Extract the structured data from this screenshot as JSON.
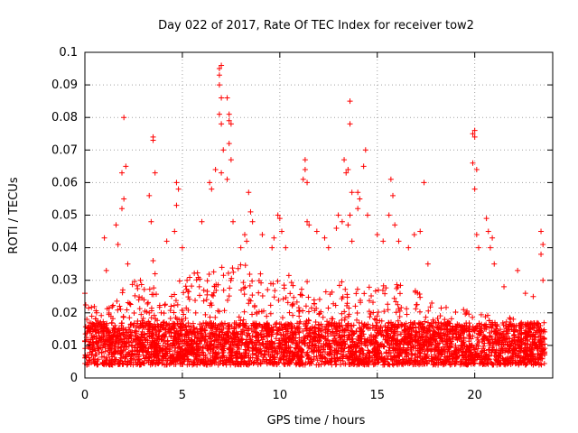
{
  "chart_data": {
    "type": "scatter",
    "title": "Day 022 of 2017, Rate Of TEC Index for receiver tow2",
    "xlabel": "GPS time / hours",
    "ylabel": "ROTI / TECUs",
    "xlim": [
      0,
      24
    ],
    "ylim": [
      0,
      0.1
    ],
    "grid": true,
    "marker": "+",
    "color": "#ff0000",
    "x_ticks": [
      "0",
      "5",
      "10",
      "15",
      "20"
    ],
    "y_ticks": [
      "0",
      "0.01",
      "0.02",
      "0.03",
      "0.04",
      "0.05",
      "0.06",
      "0.07",
      "0.08",
      "0.09",
      "0.1"
    ],
    "x_tick_values": [
      0,
      5,
      10,
      15,
      20
    ],
    "y_tick_values": [
      0,
      0.01,
      0.02,
      0.03,
      0.04,
      0.05,
      0.06,
      0.07,
      0.08,
      0.09,
      0.1
    ],
    "envelope": {
      "description_note": "",
      "x": [
        0,
        1,
        2,
        3,
        4,
        5,
        6,
        7,
        8,
        9,
        10,
        11,
        12,
        13,
        14,
        15,
        16,
        17,
        18,
        19,
        20,
        21,
        22,
        23,
        23.6
      ],
      "y_upper": [
        0.025,
        0.02,
        0.03,
        0.03,
        0.026,
        0.032,
        0.033,
        0.037,
        0.035,
        0.034,
        0.033,
        0.03,
        0.029,
        0.03,
        0.03,
        0.028,
        0.03,
        0.027,
        0.024,
        0.022,
        0.02,
        0.02,
        0.019,
        0.017,
        0.016
      ]
    },
    "series": [
      {
        "values": [
          [
            0.0,
            0.026
          ],
          [
            0.1,
            0.018
          ],
          [
            0.3,
            0.015
          ],
          [
            0.6,
            0.02
          ],
          [
            1.0,
            0.043
          ],
          [
            1.1,
            0.033
          ],
          [
            1.6,
            0.047
          ],
          [
            1.7,
            0.041
          ],
          [
            1.9,
            0.063
          ],
          [
            2.0,
            0.08
          ],
          [
            2.1,
            0.065
          ],
          [
            2.0,
            0.055
          ],
          [
            1.9,
            0.052
          ],
          [
            2.2,
            0.035
          ],
          [
            3.3,
            0.056
          ],
          [
            3.4,
            0.048
          ],
          [
            3.5,
            0.074
          ],
          [
            3.5,
            0.073
          ],
          [
            3.6,
            0.063
          ],
          [
            3.5,
            0.036
          ],
          [
            3.6,
            0.032
          ],
          [
            4.2,
            0.042
          ],
          [
            4.6,
            0.045
          ],
          [
            4.7,
            0.053
          ],
          [
            4.7,
            0.06
          ],
          [
            4.8,
            0.058
          ],
          [
            5.0,
            0.04
          ],
          [
            6.0,
            0.048
          ],
          [
            6.4,
            0.06
          ],
          [
            6.5,
            0.058
          ],
          [
            6.7,
            0.064
          ],
          [
            6.9,
            0.095
          ],
          [
            6.9,
            0.093
          ],
          [
            7.0,
            0.096
          ],
          [
            6.9,
            0.09
          ],
          [
            7.0,
            0.086
          ],
          [
            6.9,
            0.081
          ],
          [
            7.0,
            0.078
          ],
          [
            7.1,
            0.07
          ],
          [
            7.0,
            0.063
          ],
          [
            7.3,
            0.086
          ],
          [
            7.4,
            0.081
          ],
          [
            7.4,
            0.079
          ],
          [
            7.5,
            0.078
          ],
          [
            7.4,
            0.072
          ],
          [
            7.5,
            0.067
          ],
          [
            7.6,
            0.048
          ],
          [
            7.3,
            0.061
          ],
          [
            8.4,
            0.057
          ],
          [
            8.5,
            0.051
          ],
          [
            8.2,
            0.044
          ],
          [
            8.6,
            0.048
          ],
          [
            8.3,
            0.042
          ],
          [
            8.0,
            0.04
          ],
          [
            9.1,
            0.044
          ],
          [
            9.6,
            0.04
          ],
          [
            9.9,
            0.05
          ],
          [
            10.0,
            0.049
          ],
          [
            10.1,
            0.045
          ],
          [
            10.3,
            0.04
          ],
          [
            9.7,
            0.043
          ],
          [
            11.2,
            0.061
          ],
          [
            11.3,
            0.067
          ],
          [
            11.4,
            0.06
          ],
          [
            11.3,
            0.064
          ],
          [
            11.5,
            0.047
          ],
          [
            11.4,
            0.048
          ],
          [
            11.9,
            0.045
          ],
          [
            12.3,
            0.043
          ],
          [
            12.5,
            0.04
          ],
          [
            12.9,
            0.046
          ],
          [
            13.0,
            0.05
          ],
          [
            13.2,
            0.048
          ],
          [
            13.3,
            0.067
          ],
          [
            13.4,
            0.063
          ],
          [
            13.6,
            0.085
          ],
          [
            13.6,
            0.078
          ],
          [
            13.5,
            0.064
          ],
          [
            13.7,
            0.057
          ],
          [
            13.6,
            0.05
          ],
          [
            13.5,
            0.047
          ],
          [
            13.7,
            0.042
          ],
          [
            14.0,
            0.057
          ],
          [
            14.1,
            0.055
          ],
          [
            14.0,
            0.052
          ],
          [
            14.3,
            0.065
          ],
          [
            14.4,
            0.07
          ],
          [
            14.5,
            0.05
          ],
          [
            15.0,
            0.044
          ],
          [
            15.3,
            0.042
          ],
          [
            15.6,
            0.05
          ],
          [
            15.7,
            0.061
          ],
          [
            15.8,
            0.056
          ],
          [
            15.9,
            0.047
          ],
          [
            16.1,
            0.042
          ],
          [
            16.6,
            0.04
          ],
          [
            16.9,
            0.044
          ],
          [
            17.4,
            0.06
          ],
          [
            17.2,
            0.045
          ],
          [
            17.6,
            0.035
          ],
          [
            19.9,
            0.075
          ],
          [
            20.0,
            0.076
          ],
          [
            20.0,
            0.074
          ],
          [
            19.9,
            0.066
          ],
          [
            20.1,
            0.064
          ],
          [
            20.0,
            0.058
          ],
          [
            20.1,
            0.044
          ],
          [
            20.2,
            0.04
          ],
          [
            20.6,
            0.049
          ],
          [
            20.7,
            0.045
          ],
          [
            20.9,
            0.043
          ],
          [
            20.8,
            0.04
          ],
          [
            21.0,
            0.035
          ],
          [
            21.5,
            0.028
          ],
          [
            22.2,
            0.033
          ],
          [
            22.6,
            0.026
          ],
          [
            23.0,
            0.025
          ],
          [
            23.4,
            0.045
          ],
          [
            23.5,
            0.041
          ],
          [
            23.4,
            0.038
          ],
          [
            23.5,
            0.03
          ]
        ]
      }
    ]
  }
}
